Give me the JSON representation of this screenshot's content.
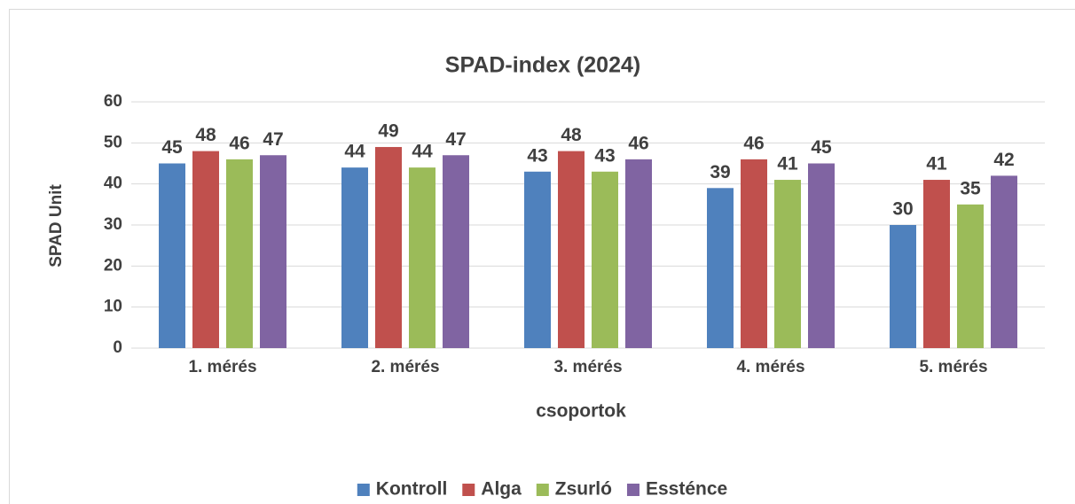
{
  "chart_data": {
    "type": "bar",
    "title": "SPAD-index  (2024)",
    "x_label": "csoportok",
    "y_label": "SPAD Unit",
    "categories": [
      "1. mérés",
      "2. mérés",
      "3. mérés",
      "4. mérés",
      "5. mérés"
    ],
    "series": [
      {
        "name": "Kontroll",
        "color": "#4f81bd",
        "values": [
          45,
          44,
          43,
          39,
          30
        ]
      },
      {
        "name": "Alga",
        "color": "#c0504d",
        "values": [
          48,
          49,
          48,
          46,
          41
        ]
      },
      {
        "name": "Zsurló",
        "color": "#9bbb59",
        "values": [
          46,
          44,
          43,
          41,
          35
        ]
      },
      {
        "name": "Essténce",
        "color": "#8064a2",
        "values": [
          47,
          47,
          46,
          45,
          42
        ]
      }
    ],
    "ylim": [
      0,
      60
    ],
    "yticks": [
      0,
      10,
      20,
      30,
      40,
      50,
      60
    ],
    "grid": true,
    "legend": "bottom"
  }
}
